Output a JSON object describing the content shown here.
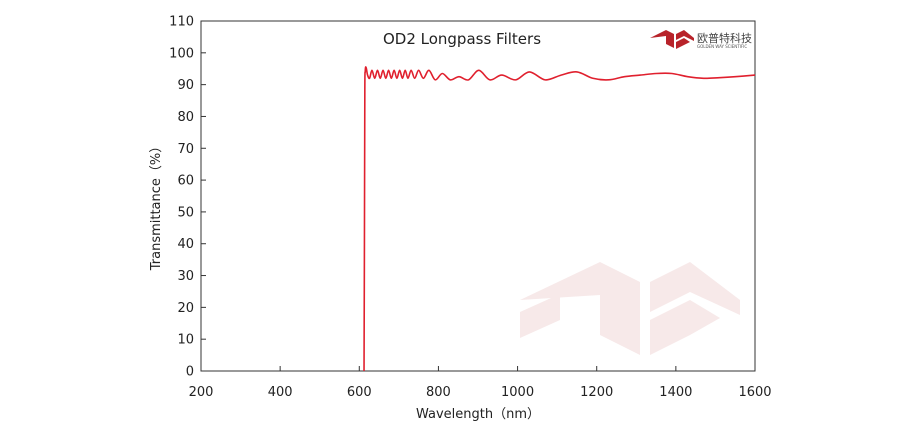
{
  "chart_data": {
    "type": "line",
    "title": "OD2  Longpass Filters",
    "xlabel": "Wavelength（nm）",
    "ylabel": "Transmittance（%）",
    "xlim": [
      200,
      1600
    ],
    "ylim": [
      0,
      110
    ],
    "xticks": [
      200,
      400,
      600,
      800,
      1000,
      1200,
      1400,
      1600
    ],
    "yticks": [
      0,
      10,
      20,
      30,
      40,
      50,
      60,
      70,
      80,
      90,
      100,
      110
    ],
    "grid": false,
    "colors": {
      "series": "#e0202e",
      "watermark": "#f5e6e6"
    },
    "series": [
      {
        "name": "",
        "x": [
          612,
          613,
          614,
          615,
          616,
          618,
          621,
          626,
          632,
          639,
          646,
          653,
          660,
          667,
          674,
          681,
          688,
          695,
          702,
          709,
          716,
          723,
          731,
          740,
          750,
          762,
          776,
          792,
          810,
          830,
          852,
          876,
          902,
          930,
          960,
          995,
          1030,
          1070,
          1110,
          1150,
          1190,
          1230,
          1270,
          1310,
          1350,
          1390,
          1430,
          1470,
          1510,
          1550,
          1600
        ],
        "y": [
          0,
          40,
          88,
          94,
          95.5,
          95,
          93,
          92,
          94.5,
          92,
          94.5,
          92,
          94.5,
          92,
          94.5,
          92,
          94.5,
          92,
          94.5,
          92,
          94.5,
          92,
          94.5,
          92,
          94.5,
          92,
          94.5,
          91.5,
          93.5,
          91.5,
          92.5,
          91.5,
          94.5,
          91.5,
          93,
          91.5,
          94,
          91.5,
          93,
          94,
          92,
          91.5,
          92.5,
          93,
          93.5,
          93.5,
          92.5,
          92,
          92.2,
          92.5,
          93
        ]
      }
    ]
  },
  "watermark": {
    "logo": "golden-way-logo"
  },
  "logo": {
    "cn": "欧普特科技",
    "en": "GOLDEN WAY SCIENTIFIC",
    "icon": "golden-way-logo-icon"
  }
}
